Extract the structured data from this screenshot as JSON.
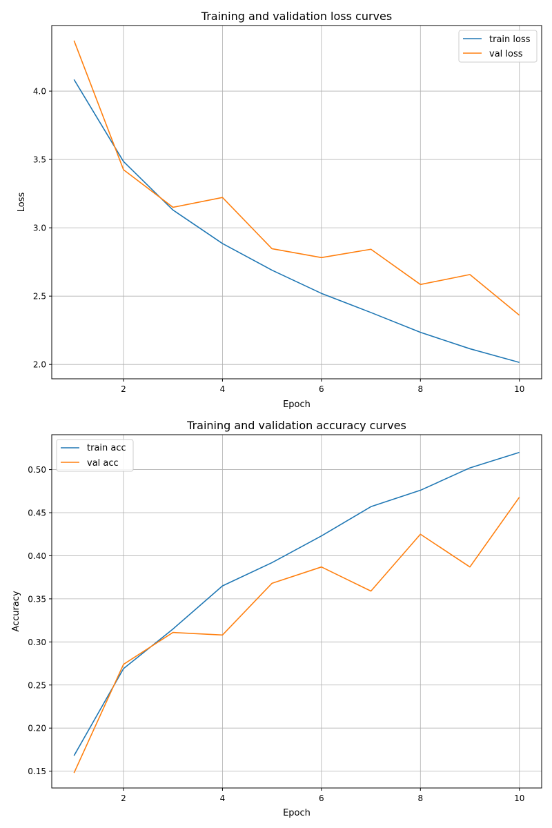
{
  "colors": {
    "train": "#1f77b4",
    "val": "#ff7f0e",
    "grid": "#b0b0b0",
    "axis": "#000000"
  },
  "chart_data": [
    {
      "type": "line",
      "title": "Training and validation loss curves",
      "xlabel": "Epoch",
      "ylabel": "Loss",
      "xlim": [
        0.55,
        10.45
      ],
      "ylim": [
        1.895,
        4.48
      ],
      "xticks": [
        2,
        4,
        6,
        8,
        10
      ],
      "yticks": [
        2.0,
        2.5,
        3.0,
        3.5,
        4.0
      ],
      "ytick_labels": [
        "2.0",
        "2.5",
        "3.0",
        "3.5",
        "4.0"
      ],
      "grid": true,
      "legend_position": "upper right",
      "x": [
        1,
        2,
        3,
        4,
        5,
        6,
        7,
        8,
        9,
        10
      ],
      "series": [
        {
          "name": "train loss",
          "color": "#1f77b4",
          "values": [
            4.085,
            3.485,
            3.13,
            2.885,
            2.69,
            2.52,
            2.38,
            2.235,
            2.115,
            2.015
          ]
        },
        {
          "name": "val loss",
          "color": "#ff7f0e",
          "values": [
            4.37,
            3.425,
            3.15,
            3.222,
            2.847,
            2.782,
            2.843,
            2.585,
            2.658,
            2.36
          ]
        }
      ]
    },
    {
      "type": "line",
      "title": "Training and validation accuracy curves",
      "xlabel": "Epoch",
      "ylabel": "Accuracy",
      "xlim": [
        0.55,
        10.45
      ],
      "ylim": [
        0.1305,
        0.5405
      ],
      "xticks": [
        2,
        4,
        6,
        8,
        10
      ],
      "yticks": [
        0.15,
        0.2,
        0.25,
        0.3,
        0.35,
        0.4,
        0.45,
        0.5
      ],
      "ytick_labels": [
        "0.15",
        "0.20",
        "0.25",
        "0.30",
        "0.35",
        "0.40",
        "0.45",
        "0.50"
      ],
      "grid": true,
      "legend_position": "upper left",
      "x": [
        1,
        2,
        3,
        4,
        5,
        6,
        7,
        8,
        9,
        10
      ],
      "series": [
        {
          "name": "train acc",
          "color": "#1f77b4",
          "values": [
            0.168,
            0.269,
            0.315,
            0.365,
            0.392,
            0.423,
            0.457,
            0.476,
            0.502,
            0.52
          ]
        },
        {
          "name": "val acc",
          "color": "#ff7f0e",
          "values": [
            0.148,
            0.274,
            0.311,
            0.308,
            0.368,
            0.387,
            0.359,
            0.425,
            0.387,
            0.468
          ]
        }
      ]
    }
  ]
}
